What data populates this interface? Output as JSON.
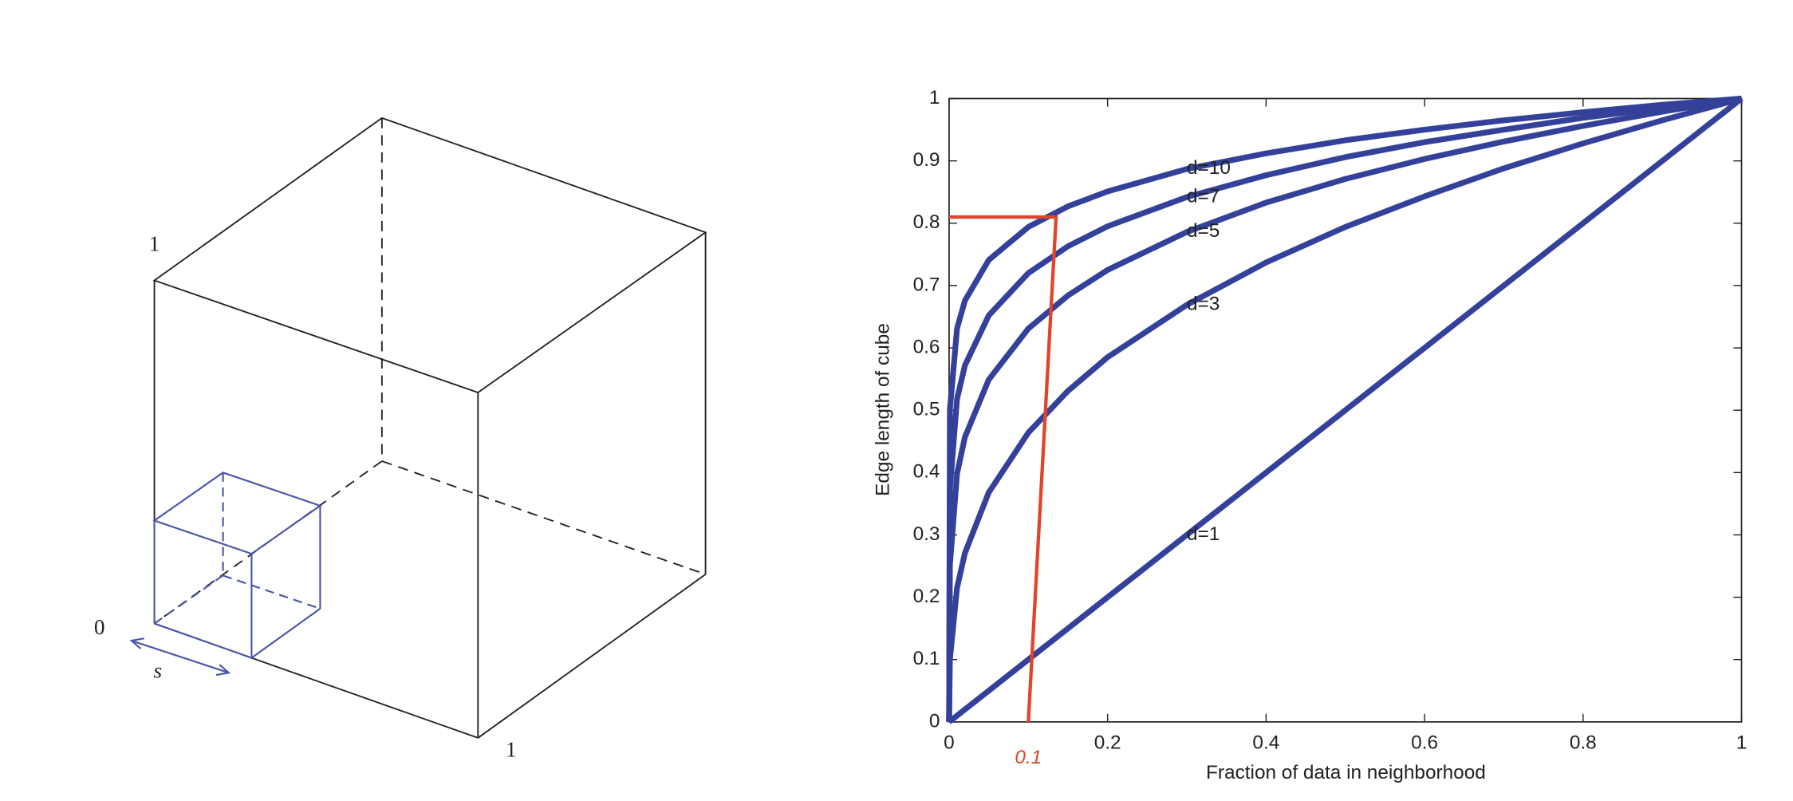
{
  "chart_data": {
    "type": "line",
    "xlabel": "Fraction of data in neighborhood",
    "ylabel": "Edge length of cube",
    "x": [
      0,
      0.001,
      0.01,
      0.02,
      0.05,
      0.1,
      0.15,
      0.2,
      0.3,
      0.4,
      0.5,
      0.6,
      0.7,
      0.8,
      0.9,
      1
    ],
    "series": [
      {
        "name": "d=10",
        "color": "#33419a",
        "values": [
          0,
          0.501,
          0.631,
          0.676,
          0.741,
          0.794,
          0.827,
          0.851,
          0.887,
          0.912,
          0.933,
          0.95,
          0.965,
          0.978,
          0.99,
          1
        ]
      },
      {
        "name": "d=7",
        "color": "#33419a",
        "values": [
          0,
          0.373,
          0.518,
          0.572,
          0.652,
          0.72,
          0.763,
          0.795,
          0.842,
          0.877,
          0.906,
          0.93,
          0.95,
          0.969,
          0.985,
          1
        ]
      },
      {
        "name": "d=5",
        "color": "#33419a",
        "values": [
          0,
          0.251,
          0.398,
          0.457,
          0.549,
          0.631,
          0.684,
          0.725,
          0.786,
          0.833,
          0.871,
          0.903,
          0.931,
          0.956,
          0.979,
          1
        ]
      },
      {
        "name": "d=3",
        "color": "#33419a",
        "values": [
          0,
          0.1,
          0.215,
          0.271,
          0.368,
          0.464,
          0.531,
          0.585,
          0.669,
          0.737,
          0.794,
          0.843,
          0.888,
          0.928,
          0.965,
          1
        ]
      },
      {
        "name": "d=1",
        "color": "#33419a",
        "values": [
          0,
          0.001,
          0.01,
          0.02,
          0.05,
          0.1,
          0.15,
          0.2,
          0.3,
          0.4,
          0.5,
          0.6,
          0.7,
          0.8,
          0.9,
          1
        ]
      }
    ],
    "xlim": [
      0,
      1
    ],
    "ylim": [
      0,
      1
    ],
    "xticks": [
      0,
      0.2,
      0.4,
      0.6,
      0.8,
      1
    ],
    "yticks": [
      0,
      0.1,
      0.2,
      0.3,
      0.4,
      0.5,
      0.6,
      0.7,
      0.8,
      0.9,
      1
    ],
    "highlight": {
      "color": "#e0442a",
      "x": [
        0.1,
        0.135,
        0
      ],
      "y": [
        0,
        0.81,
        0.81
      ],
      "text": "0.1"
    }
  },
  "diagram": {
    "labels": [
      "1",
      "0",
      "s",
      "1"
    ]
  }
}
